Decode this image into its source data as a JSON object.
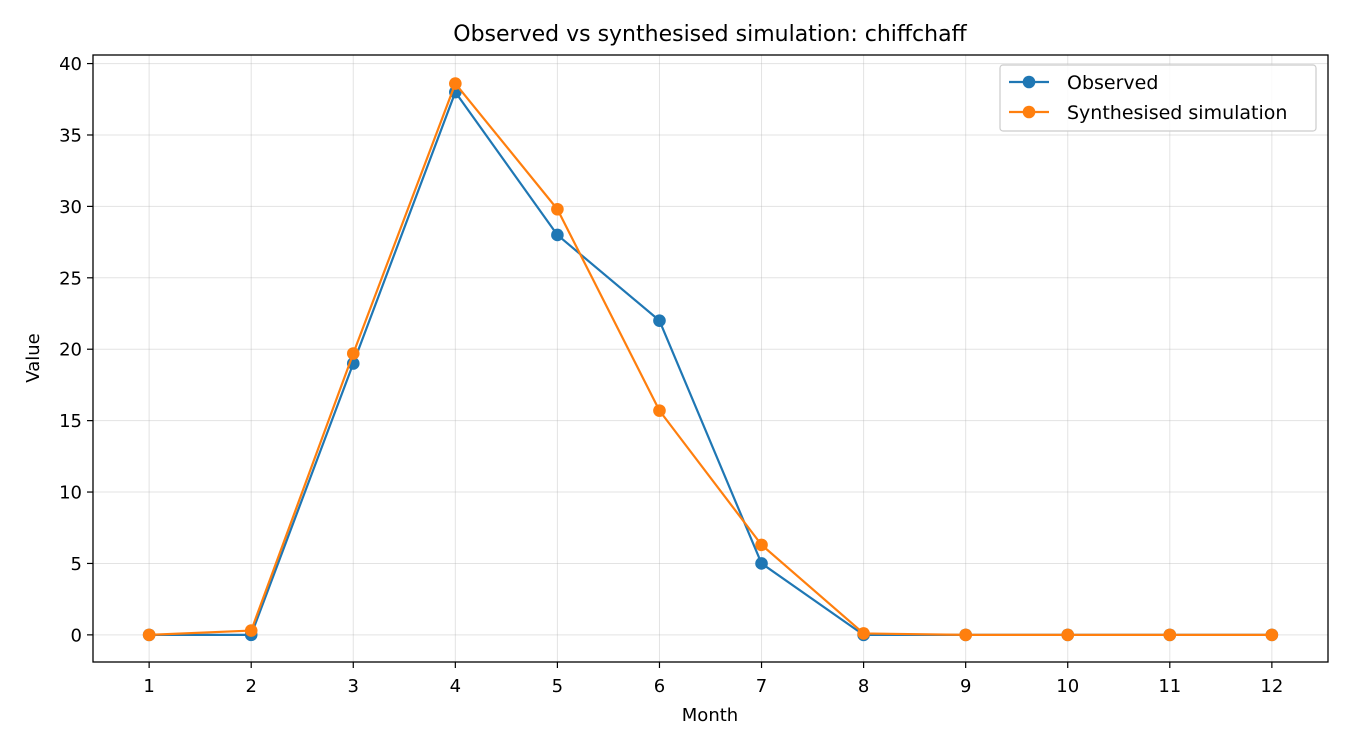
{
  "chart_data": {
    "type": "line",
    "title": "Observed vs synthesised simulation: chiffchaff",
    "xlabel": "Month",
    "ylabel": "Value",
    "x": [
      1,
      2,
      3,
      4,
      5,
      6,
      7,
      8,
      9,
      10,
      11,
      12
    ],
    "xticks": [
      1,
      2,
      3,
      4,
      5,
      6,
      7,
      8,
      9,
      10,
      11,
      12
    ],
    "yticks": [
      0,
      5,
      10,
      15,
      20,
      25,
      30,
      35,
      40
    ],
    "xlim": [
      0.45,
      12.55
    ],
    "ylim": [
      -1.9,
      40.6
    ],
    "grid": true,
    "legend_position": "top-right",
    "series": [
      {
        "name": "Observed",
        "color": "#1f77b4",
        "values": [
          0,
          0,
          19,
          38,
          28,
          22,
          5,
          0,
          0,
          0,
          0,
          0
        ]
      },
      {
        "name": "Synthesised simulation",
        "color": "#ff7f0e",
        "values": [
          0,
          0.3,
          19.7,
          38.6,
          29.8,
          15.7,
          6.3,
          0.1,
          0,
          0,
          0,
          0
        ]
      }
    ]
  }
}
